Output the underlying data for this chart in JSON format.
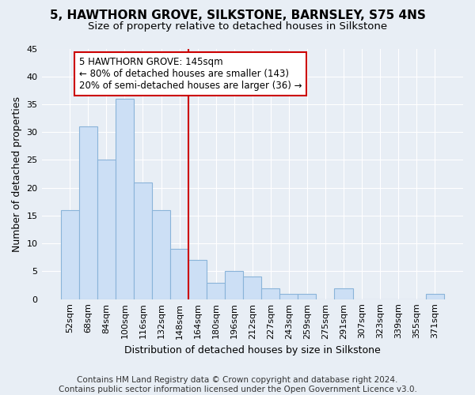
{
  "title1": "5, HAWTHORN GROVE, SILKSTONE, BARNSLEY, S75 4NS",
  "title2": "Size of property relative to detached houses in Silkstone",
  "xlabel": "Distribution of detached houses by size in Silkstone",
  "ylabel": "Number of detached properties",
  "categories": [
    "52sqm",
    "68sqm",
    "84sqm",
    "100sqm",
    "116sqm",
    "132sqm",
    "148sqm",
    "164sqm",
    "180sqm",
    "196sqm",
    "212sqm",
    "227sqm",
    "243sqm",
    "259sqm",
    "275sqm",
    "291sqm",
    "307sqm",
    "323sqm",
    "339sqm",
    "355sqm",
    "371sqm"
  ],
  "values": [
    16,
    31,
    25,
    36,
    21,
    16,
    9,
    7,
    3,
    5,
    4,
    2,
    1,
    1,
    0,
    2,
    0,
    0,
    0,
    0,
    1
  ],
  "bar_color": "#ccdff5",
  "bar_edge_color": "#8ab4d9",
  "vline_x": 6.5,
  "vline_color": "#cc0000",
  "annotation_text": "5 HAWTHORN GROVE: 145sqm\n← 80% of detached houses are smaller (143)\n20% of semi-detached houses are larger (36) →",
  "annotation_box_color": "#ffffff",
  "annotation_box_edge_color": "#cc0000",
  "ylim": [
    0,
    45
  ],
  "yticks": [
    0,
    5,
    10,
    15,
    20,
    25,
    30,
    35,
    40,
    45
  ],
  "footer1": "Contains HM Land Registry data © Crown copyright and database right 2024.",
  "footer2": "Contains public sector information licensed under the Open Government Licence v3.0.",
  "bg_color": "#e8eef5",
  "plot_bg_color": "#e8eef5",
  "grid_color": "#ffffff",
  "title1_fontsize": 11,
  "title2_fontsize": 9.5,
  "axis_label_fontsize": 9,
  "tick_fontsize": 8,
  "annotation_fontsize": 8.5,
  "footer_fontsize": 7.5
}
